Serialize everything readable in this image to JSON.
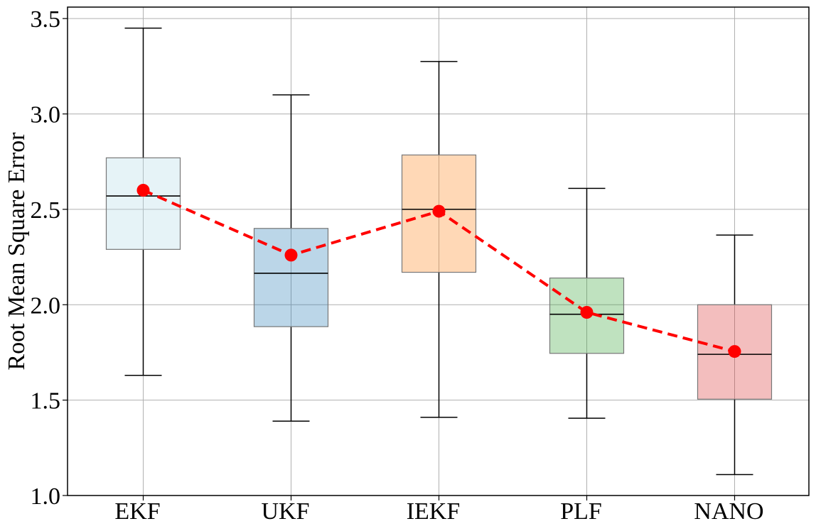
{
  "chart_data": {
    "type": "box",
    "ylabel": "Root Mean Square Error",
    "ylim": [
      1.0,
      3.56
    ],
    "yticks": [
      "1.0",
      "1.5",
      "2.0",
      "2.5",
      "3.0",
      "3.5"
    ],
    "grid": true,
    "categories": [
      "EKF",
      "UKF",
      "IEKF",
      "PLF",
      "NANO"
    ],
    "boxes": [
      {
        "whisker_low": 1.63,
        "q1": 2.29,
        "median": 2.57,
        "q3": 2.77,
        "whisker_high": 3.45,
        "color": "#add8e6"
      },
      {
        "whisker_low": 1.39,
        "q1": 1.885,
        "median": 2.165,
        "q3": 2.4,
        "whisker_high": 3.1,
        "color": "#1f77b4"
      },
      {
        "whisker_low": 1.41,
        "q1": 2.17,
        "median": 2.5,
        "q3": 2.785,
        "whisker_high": 3.275,
        "color": "#ff7f0e"
      },
      {
        "whisker_low": 1.405,
        "q1": 1.745,
        "median": 1.95,
        "q3": 2.14,
        "whisker_high": 2.61,
        "color": "#2ca02c"
      },
      {
        "whisker_low": 1.11,
        "q1": 1.505,
        "median": 1.74,
        "q3": 2.0,
        "whisker_high": 2.365,
        "color": "#d62728"
      }
    ],
    "mean_line": {
      "values": [
        2.6,
        2.26,
        2.49,
        1.96,
        1.755
      ],
      "color": "#ff0000",
      "style": "dashed",
      "marker": "circle"
    }
  }
}
